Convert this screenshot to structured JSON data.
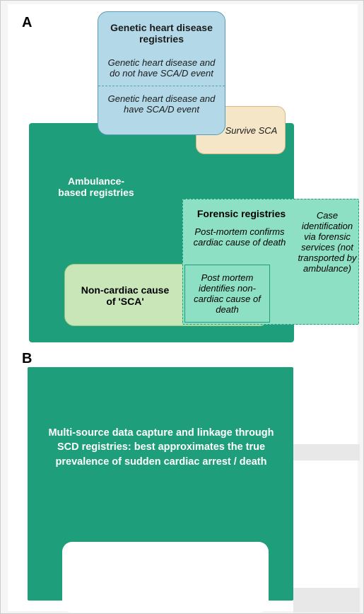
{
  "panelA": {
    "label": "A"
  },
  "panelB": {
    "label": "B"
  },
  "genetic": {
    "title": "Genetic heart disease registries",
    "sub1": "Genetic heart disease and do not have SCA/D event",
    "sub2": "Genetic heart disease and have SCA/D event"
  },
  "survive": {
    "label": "Survive SCA"
  },
  "ambulance": {
    "title": "Ambulance-based registries"
  },
  "forensic": {
    "title": "Forensic registries",
    "sub1": "Post-mortem confirms cardiac cause of death",
    "pm": "Post mortem identifies non-cardiac cause of death",
    "right": "Case identification via forensic services (not transported by ambulance)"
  },
  "noncardiac": {
    "title": "Non-cardiac cause of 'SCA'"
  },
  "multi": {
    "text": "Multi-source data capture and linkage through SCD registries: best approximates the true prevalence of sudden cardiac arrest / death"
  },
  "colors": {
    "teal": "#1e9e7a",
    "lightblue": "#b3d9e8",
    "cream": "#f5e6c8",
    "mint": "#8ee0c4",
    "lightgreen": "#c8e6b8"
  }
}
